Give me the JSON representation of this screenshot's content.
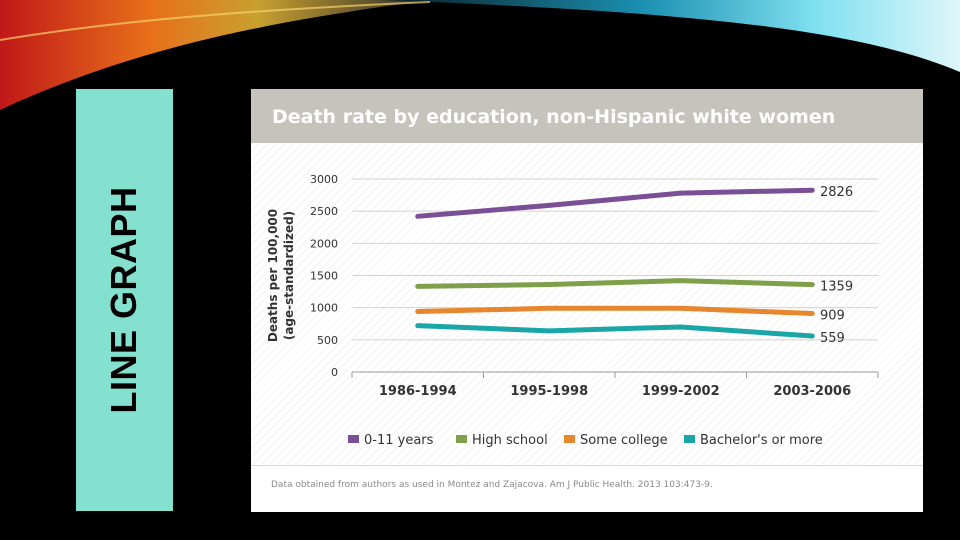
{
  "slide": {
    "side_title": "LINE GRAPH",
    "colors": {
      "panel": "#84e0cf",
      "background": "#000000"
    }
  },
  "card": {
    "title": "Death rate by education, non-Hispanic white women",
    "source_note": "Data obtained from authors as used in Montez and Zajacova. Am J Public Health. 2013 103:473-9."
  },
  "chart_data": {
    "type": "line",
    "title": "Death rate by education, non-Hispanic white women",
    "xlabel": "",
    "ylabel": "Deaths per 100,000",
    "ylabel_sub": "(age-standardized)",
    "categories": [
      "1986-1994",
      "1995-1998",
      "1999-2002",
      "2003-2006"
    ],
    "ylim": [
      0,
      3000
    ],
    "yticks": [
      0,
      500,
      1000,
      1500,
      2000,
      2500,
      3000
    ],
    "grid": true,
    "legend": "bottom",
    "series": [
      {
        "name": "0-11 years",
        "color": "#7b4f96",
        "values": [
          2420,
          2590,
          2780,
          2826
        ],
        "end_label": "2826"
      },
      {
        "name": "High school",
        "color": "#7fa04a",
        "values": [
          1330,
          1360,
          1420,
          1359
        ],
        "end_label": "1359"
      },
      {
        "name": "Some college",
        "color": "#e8862e",
        "values": [
          940,
          990,
          990,
          909
        ],
        "end_label": "909"
      },
      {
        "name": "Bachelor's or more",
        "color": "#1aa6a6",
        "values": [
          720,
          640,
          700,
          559
        ],
        "end_label": "559"
      }
    ]
  }
}
